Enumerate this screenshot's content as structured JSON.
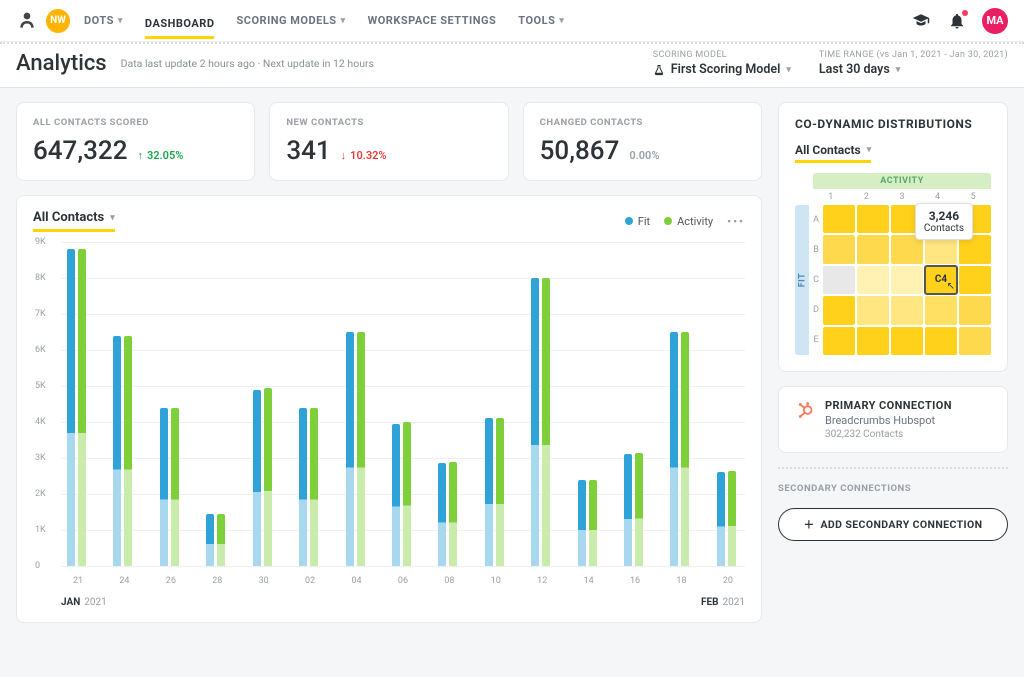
{
  "nav": {
    "nw": "NW",
    "items": [
      {
        "label": "DOTS",
        "dropdown": true,
        "active": false
      },
      {
        "label": "DASHBOARD",
        "dropdown": false,
        "active": true
      },
      {
        "label": "SCORING MODELS",
        "dropdown": true,
        "active": false
      },
      {
        "label": "WORKSPACE SETTINGS",
        "dropdown": false,
        "active": false
      },
      {
        "label": "TOOLS",
        "dropdown": true,
        "active": false
      }
    ],
    "ma": "MA"
  },
  "subhead": {
    "title": "Analytics",
    "note": "Data last update 2 hours ago · Next update in 12 hours",
    "scoring_model_label": "SCORING MODEL",
    "scoring_model_value": "First Scoring Model",
    "time_range_label": "TIME RANGE (vs Jan 1, 2021 - Jan 30, 2021)",
    "time_range_value": "Last 30 days"
  },
  "kpi": [
    {
      "label": "ALL CONTACTS SCORED",
      "value": "647,322",
      "delta": "32.05%",
      "dir": "up"
    },
    {
      "label": "NEW CONTACTS",
      "value": "341",
      "delta": "10.32%",
      "dir": "down"
    },
    {
      "label": "CHANGED CONTACTS",
      "value": "50,867",
      "delta": "0.00%",
      "dir": "flat"
    }
  ],
  "chart": {
    "dropdown": "All Contacts",
    "legend": [
      {
        "label": "Fit",
        "color": "#2fa3d8"
      },
      {
        "label": "Activity",
        "color": "#7fcf3a"
      }
    ],
    "ymax": 9000,
    "yticks": [
      "9K",
      "8K",
      "7K",
      "6K",
      "5K",
      "4K",
      "3K",
      "2K",
      "1K",
      "0"
    ],
    "fit_color_dark": "#2fa3d8",
    "fit_color_light": "#a8d8ef",
    "act_color_dark": "#7fcf3a",
    "act_color_light": "#c9ebab",
    "grid_color": "#eef0f2",
    "data": [
      {
        "x": "21",
        "fit": 8800,
        "act": 8800
      },
      {
        "x": "24",
        "fit": 6400,
        "act": 6400
      },
      {
        "x": "26",
        "fit": 4400,
        "act": 4400
      },
      {
        "x": "28",
        "fit": 1450,
        "act": 1450
      },
      {
        "x": "30",
        "fit": 4900,
        "act": 4950
      },
      {
        "x": "02",
        "fit": 4400,
        "act": 4400
      },
      {
        "x": "04",
        "fit": 6500,
        "act": 6500
      },
      {
        "x": "06",
        "fit": 3950,
        "act": 4000
      },
      {
        "x": "08",
        "fit": 2850,
        "act": 2900
      },
      {
        "x": "10",
        "fit": 4100,
        "act": 4100
      },
      {
        "x": "12",
        "fit": 8000,
        "act": 8000
      },
      {
        "x": "14",
        "fit": 2400,
        "act": 2400
      },
      {
        "x": "16",
        "fit": 3100,
        "act": 3150
      },
      {
        "x": "18",
        "fit": 6500,
        "act": 6500
      },
      {
        "x": "20",
        "fit": 2600,
        "act": 2650
      }
    ],
    "month_left": {
      "abbr": "JAN",
      "year": "2021"
    },
    "month_right": {
      "abbr": "FEB",
      "year": "2021"
    }
  },
  "codyn": {
    "title": "CO-DYNAMIC DISTRIBUTIONS",
    "dropdown": "All Contacts",
    "activity_header": "ACTIVITY",
    "fit_header": "FIT",
    "cols": [
      "1",
      "2",
      "3",
      "4",
      "5"
    ],
    "rows": [
      "A",
      "B",
      "C",
      "D",
      "E"
    ],
    "tooltip_value": "3,246",
    "tooltip_label": "Contacts",
    "highlight_label": "C4",
    "colors": [
      [
        "#ffd11a",
        "#ffd11a",
        "#ffd11a",
        "#ffd11a",
        "#ffd11a"
      ],
      [
        "#ffd94d",
        "#ffd94d",
        "#ffd94d",
        "#ffe680",
        "#ffd11a"
      ],
      [
        "#e8e8e8",
        "#fff2b3",
        "#fff2b3",
        "#ffd11a",
        "#ffd11a"
      ],
      [
        "#ffd11a",
        "#ffe680",
        "#ffe680",
        "#ffe062",
        "#ffd94d"
      ],
      [
        "#ffd11a",
        "#ffd11a",
        "#ffd11a",
        "#ffd11a",
        "#ffd94d"
      ]
    ]
  },
  "primary": {
    "label": "PRIMARY CONNECTION",
    "name": "Breadcrumbs Hubspot",
    "count": "302,232 Contacts"
  },
  "secondary": {
    "label": "SECONDARY CONNECTIONS",
    "button": "ADD SECONDARY CONNECTION"
  }
}
